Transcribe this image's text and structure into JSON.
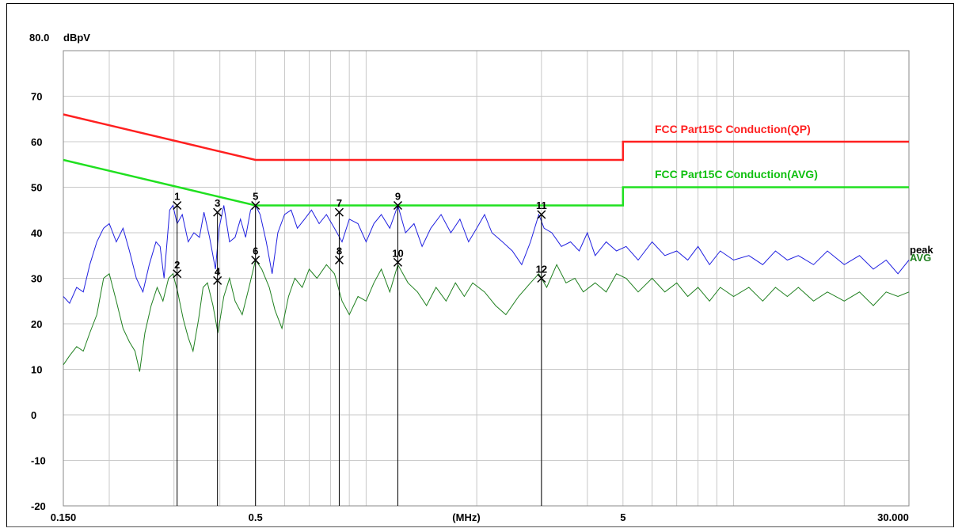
{
  "chart_data": {
    "type": "line",
    "title": "",
    "yunit": "dBpV",
    "xunit": "(MHz)",
    "x_scale": "log",
    "xlim": [
      0.15,
      30.0
    ],
    "ylim": [
      -20,
      80
    ],
    "yticks": [
      {
        "value": 80,
        "label": "80.0"
      },
      {
        "value": 70,
        "label": "70"
      },
      {
        "value": 60,
        "label": "60"
      },
      {
        "value": 50,
        "label": "50"
      },
      {
        "value": 40,
        "label": "40"
      },
      {
        "value": 30,
        "label": "30"
      },
      {
        "value": 20,
        "label": "20"
      },
      {
        "value": 10,
        "label": "10"
      },
      {
        "value": 0,
        "label": "0"
      },
      {
        "value": -10,
        "label": "-10"
      },
      {
        "value": -20,
        "label": "-20"
      }
    ],
    "xticks": [
      {
        "value": 0.15,
        "label": "0.150"
      },
      {
        "value": 0.5,
        "label": "0.5"
      },
      {
        "value": 5,
        "label": "5"
      },
      {
        "value": 30,
        "label": "30.000"
      }
    ],
    "grid": true,
    "colors": {
      "qp_limit": "#ff2020",
      "avg_limit": "#20e020",
      "peak": "#2020e0",
      "avg": "#208020",
      "marker": "#000000"
    },
    "limits": [
      {
        "name": "FCC Part15C  Conduction(QP)",
        "points": [
          [
            0.15,
            66
          ],
          [
            0.5,
            56
          ],
          [
            5,
            56
          ],
          [
            5,
            60
          ],
          [
            30,
            60
          ]
        ]
      },
      {
        "name": "FCC Part15C  Conduction(AVG)",
        "points": [
          [
            0.15,
            56
          ],
          [
            0.5,
            46
          ],
          [
            5,
            46
          ],
          [
            5,
            50
          ],
          [
            30,
            50
          ]
        ]
      }
    ],
    "series": [
      {
        "name": "peak",
        "points": [
          [
            0.15,
            26
          ],
          [
            0.156,
            24.5
          ],
          [
            0.163,
            28
          ],
          [
            0.17,
            27
          ],
          [
            0.177,
            33
          ],
          [
            0.185,
            38
          ],
          [
            0.193,
            41
          ],
          [
            0.2,
            42
          ],
          [
            0.209,
            38
          ],
          [
            0.218,
            41
          ],
          [
            0.227,
            36
          ],
          [
            0.237,
            30
          ],
          [
            0.247,
            27
          ],
          [
            0.257,
            33
          ],
          [
            0.268,
            38
          ],
          [
            0.275,
            37
          ],
          [
            0.282,
            30
          ],
          [
            0.292,
            45
          ],
          [
            0.298,
            46
          ],
          [
            0.306,
            42
          ],
          [
            0.316,
            44
          ],
          [
            0.328,
            38
          ],
          [
            0.34,
            40
          ],
          [
            0.352,
            39
          ],
          [
            0.362,
            44.5
          ],
          [
            0.375,
            39
          ],
          [
            0.389,
            32
          ],
          [
            0.398,
            41
          ],
          [
            0.41,
            46
          ],
          [
            0.425,
            38
          ],
          [
            0.44,
            39
          ],
          [
            0.455,
            43
          ],
          [
            0.47,
            39
          ],
          [
            0.485,
            45
          ],
          [
            0.5,
            46
          ],
          [
            0.515,
            44
          ],
          [
            0.535,
            38
          ],
          [
            0.555,
            31
          ],
          [
            0.575,
            40
          ],
          [
            0.6,
            44
          ],
          [
            0.625,
            45
          ],
          [
            0.65,
            41
          ],
          [
            0.68,
            43
          ],
          [
            0.71,
            45
          ],
          [
            0.745,
            42
          ],
          [
            0.78,
            44
          ],
          [
            0.82,
            41
          ],
          [
            0.86,
            38
          ],
          [
            0.9,
            43
          ],
          [
            0.95,
            42
          ],
          [
            1.0,
            38
          ],
          [
            1.05,
            42
          ],
          [
            1.1,
            44
          ],
          [
            1.16,
            41
          ],
          [
            1.22,
            46
          ],
          [
            1.28,
            40
          ],
          [
            1.35,
            42
          ],
          [
            1.42,
            37
          ],
          [
            1.5,
            41
          ],
          [
            1.6,
            44
          ],
          [
            1.7,
            40
          ],
          [
            1.8,
            43
          ],
          [
            1.9,
            38
          ],
          [
            2.0,
            41
          ],
          [
            2.1,
            44
          ],
          [
            2.2,
            40
          ],
          [
            2.35,
            38
          ],
          [
            2.5,
            36
          ],
          [
            2.65,
            33
          ],
          [
            2.8,
            38
          ],
          [
            2.95,
            44
          ],
          [
            3.05,
            41
          ],
          [
            3.2,
            40
          ],
          [
            3.4,
            37
          ],
          [
            3.6,
            38
          ],
          [
            3.8,
            36
          ],
          [
            4.0,
            40
          ],
          [
            4.2,
            35
          ],
          [
            4.5,
            38
          ],
          [
            4.8,
            36
          ],
          [
            5.1,
            37
          ],
          [
            5.5,
            34
          ],
          [
            6.0,
            38
          ],
          [
            6.5,
            35
          ],
          [
            7.0,
            36
          ],
          [
            7.5,
            34
          ],
          [
            8.0,
            37
          ],
          [
            8.6,
            33
          ],
          [
            9.2,
            36
          ],
          [
            10.0,
            34
          ],
          [
            11.0,
            35
          ],
          [
            12.0,
            33
          ],
          [
            13.0,
            36
          ],
          [
            14.0,
            34
          ],
          [
            15.0,
            35
          ],
          [
            16.5,
            33
          ],
          [
            18.0,
            36
          ],
          [
            20.0,
            33
          ],
          [
            22.0,
            35
          ],
          [
            24.0,
            32
          ],
          [
            26.0,
            34
          ],
          [
            28.0,
            31
          ],
          [
            30.0,
            34
          ]
        ]
      },
      {
        "name": "AVG",
        "points": [
          [
            0.15,
            11
          ],
          [
            0.156,
            13
          ],
          [
            0.163,
            15
          ],
          [
            0.17,
            14
          ],
          [
            0.177,
            18
          ],
          [
            0.185,
            22
          ],
          [
            0.193,
            30
          ],
          [
            0.2,
            31
          ],
          [
            0.209,
            25
          ],
          [
            0.218,
            19
          ],
          [
            0.227,
            16
          ],
          [
            0.235,
            14
          ],
          [
            0.242,
            9.5
          ],
          [
            0.25,
            18
          ],
          [
            0.26,
            24
          ],
          [
            0.27,
            28
          ],
          [
            0.28,
            25
          ],
          [
            0.29,
            30
          ],
          [
            0.298,
            31
          ],
          [
            0.307,
            27
          ],
          [
            0.318,
            21
          ],
          [
            0.328,
            17
          ],
          [
            0.338,
            14
          ],
          [
            0.35,
            21
          ],
          [
            0.36,
            28
          ],
          [
            0.37,
            29
          ],
          [
            0.383,
            24
          ],
          [
            0.395,
            18
          ],
          [
            0.41,
            26
          ],
          [
            0.425,
            30
          ],
          [
            0.44,
            25
          ],
          [
            0.46,
            22
          ],
          [
            0.48,
            28
          ],
          [
            0.5,
            34
          ],
          [
            0.52,
            32
          ],
          [
            0.545,
            28
          ],
          [
            0.565,
            23
          ],
          [
            0.59,
            19
          ],
          [
            0.615,
            26
          ],
          [
            0.64,
            30
          ],
          [
            0.67,
            28
          ],
          [
            0.7,
            32
          ],
          [
            0.735,
            30
          ],
          [
            0.78,
            33
          ],
          [
            0.82,
            31
          ],
          [
            0.86,
            25
          ],
          [
            0.9,
            22
          ],
          [
            0.95,
            26
          ],
          [
            1.0,
            25
          ],
          [
            1.05,
            29
          ],
          [
            1.1,
            32
          ],
          [
            1.16,
            27
          ],
          [
            1.22,
            33
          ],
          [
            1.3,
            29
          ],
          [
            1.38,
            27
          ],
          [
            1.46,
            24
          ],
          [
            1.55,
            28
          ],
          [
            1.65,
            25
          ],
          [
            1.75,
            29
          ],
          [
            1.85,
            26
          ],
          [
            1.95,
            29
          ],
          [
            2.1,
            27
          ],
          [
            2.25,
            24
          ],
          [
            2.4,
            22
          ],
          [
            2.6,
            26
          ],
          [
            2.8,
            29
          ],
          [
            2.95,
            31
          ],
          [
            3.1,
            28
          ],
          [
            3.3,
            33
          ],
          [
            3.5,
            29
          ],
          [
            3.7,
            30
          ],
          [
            3.9,
            27
          ],
          [
            4.2,
            29
          ],
          [
            4.5,
            27
          ],
          [
            4.8,
            31
          ],
          [
            5.1,
            30
          ],
          [
            5.5,
            27
          ],
          [
            6.0,
            30
          ],
          [
            6.5,
            27
          ],
          [
            7.0,
            29
          ],
          [
            7.5,
            26
          ],
          [
            8.0,
            28
          ],
          [
            8.6,
            25
          ],
          [
            9.2,
            28
          ],
          [
            10.0,
            26
          ],
          [
            11.0,
            28
          ],
          [
            12.0,
            25
          ],
          [
            13.0,
            28
          ],
          [
            14.0,
            26
          ],
          [
            15.0,
            28
          ],
          [
            16.5,
            25
          ],
          [
            18.0,
            27
          ],
          [
            20.0,
            25
          ],
          [
            22.0,
            27
          ],
          [
            24.0,
            24
          ],
          [
            26.0,
            27
          ],
          [
            28.0,
            26
          ],
          [
            30.0,
            27
          ]
        ]
      }
    ],
    "markers": [
      {
        "id": "1",
        "x": 0.306,
        "y": 46
      },
      {
        "id": "2",
        "x": 0.306,
        "y": 31
      },
      {
        "id": "3",
        "x": 0.394,
        "y": 44.5
      },
      {
        "id": "4",
        "x": 0.394,
        "y": 29.5
      },
      {
        "id": "5",
        "x": 0.5,
        "y": 46
      },
      {
        "id": "6",
        "x": 0.5,
        "y": 34
      },
      {
        "id": "7",
        "x": 0.845,
        "y": 44.5
      },
      {
        "id": "8",
        "x": 0.845,
        "y": 34
      },
      {
        "id": "9",
        "x": 1.22,
        "y": 46
      },
      {
        "id": "10",
        "x": 1.22,
        "y": 33.5
      },
      {
        "id": "11",
        "x": 3.0,
        "y": 44
      },
      {
        "id": "12",
        "x": 3.0,
        "y": 30
      }
    ]
  }
}
